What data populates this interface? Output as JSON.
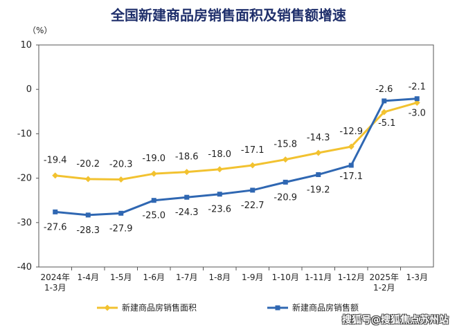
{
  "chart_data": {
    "type": "line",
    "title": "全国新建商品房销售面积及销售额增速",
    "ylabel": "（%）",
    "xlabel": "",
    "ylim": [
      -40,
      10
    ],
    "yticks": [
      10,
      0,
      -10,
      -20,
      -30,
      -40
    ],
    "grid": false,
    "legend_position": "bottom",
    "categories": [
      "2024年\n1-3月",
      "1-4月",
      "1-5月",
      "1-6月",
      "1-7月",
      "1-8月",
      "1-9月",
      "1-10月",
      "1-11月",
      "1-12月",
      "2025年\n1-2月",
      "1-3月"
    ],
    "series": [
      {
        "name": "新建商品房销售面积",
        "color": "#f2c230",
        "marker": "diamond",
        "values": [
          -19.4,
          -20.2,
          -20.3,
          -19.0,
          -18.6,
          -18.0,
          -17.1,
          -15.8,
          -14.3,
          -12.9,
          -5.1,
          -3.0
        ],
        "labels": [
          "-19.4",
          "-20.2",
          "-20.3",
          "-19.0",
          "-18.6",
          "-18.0",
          "-17.1",
          "-15.8",
          "-14.3",
          "-12.9",
          "-5.1",
          "-3.0"
        ]
      },
      {
        "name": "新建商品房销售额",
        "color": "#2f67b2",
        "marker": "square",
        "values": [
          -27.6,
          -28.3,
          -27.9,
          -25.0,
          -24.3,
          -23.6,
          -22.7,
          -20.9,
          -19.2,
          -17.1,
          -2.6,
          -2.1
        ],
        "labels": [
          "-27.6",
          "-28.3",
          "-27.9",
          "-25.0",
          "-24.3",
          "-23.6",
          "-22.7",
          "-20.9",
          "-19.2",
          "-17.1",
          "-2.6",
          "-2.1"
        ]
      }
    ]
  },
  "watermark": "搜狐号@搜狐焦点苏州站"
}
